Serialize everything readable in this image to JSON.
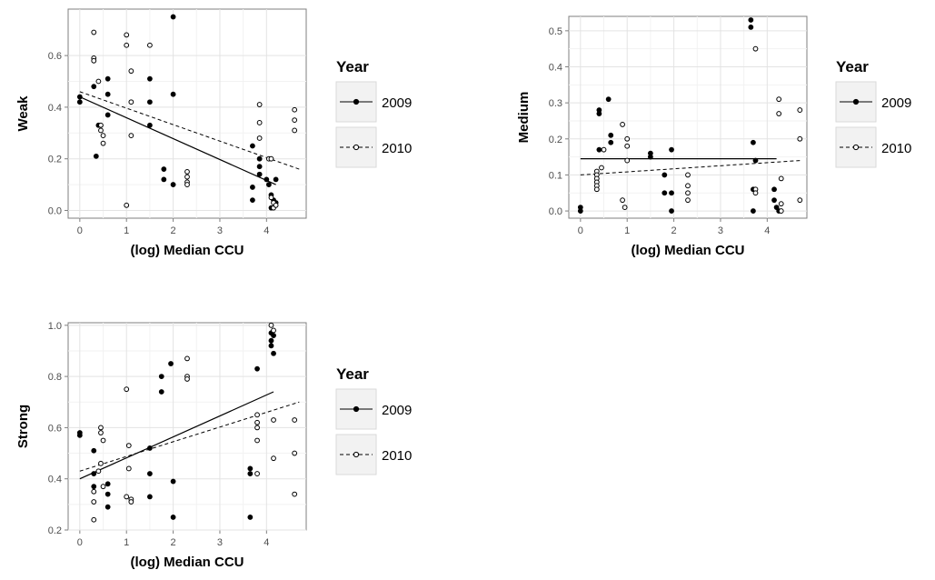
{
  "chart_data": [
    {
      "type": "scatter",
      "panel": "weak",
      "title": "",
      "xlabel": "(log) Median CCU",
      "ylabel": "Weak",
      "xlim": [
        -0.25,
        4.85
      ],
      "ylim": [
        -0.03,
        0.78
      ],
      "x_ticks": [
        0,
        1,
        2,
        3,
        4
      ],
      "y_ticks": [
        0.0,
        0.2,
        0.4,
        0.6
      ],
      "y_tick_labels": [
        "0.0",
        "0.2",
        "0.4",
        "0.6"
      ],
      "grid": true,
      "legend": {
        "title": "Year",
        "position": "right",
        "entries": [
          "2009",
          "2010"
        ]
      },
      "series": [
        {
          "name": "2009",
          "marker": "filled",
          "line": "solid",
          "points": [
            [
              0.0,
              0.44
            ],
            [
              0.0,
              0.42
            ],
            [
              0.3,
              0.48
            ],
            [
              0.35,
              0.21
            ],
            [
              0.4,
              0.33
            ],
            [
              0.6,
              0.51
            ],
            [
              0.6,
              0.45
            ],
            [
              0.6,
              0.37
            ],
            [
              1.5,
              0.51
            ],
            [
              1.5,
              0.42
            ],
            [
              1.5,
              0.33
            ],
            [
              1.8,
              0.16
            ],
            [
              1.8,
              0.12
            ],
            [
              2.0,
              0.75
            ],
            [
              2.0,
              0.45
            ],
            [
              2.0,
              0.1
            ],
            [
              3.7,
              0.25
            ],
            [
              3.7,
              0.09
            ],
            [
              3.7,
              0.04
            ],
            [
              3.85,
              0.2
            ],
            [
              3.85,
              0.17
            ],
            [
              3.85,
              0.14
            ],
            [
              4.0,
              0.12
            ],
            [
              4.05,
              0.1
            ],
            [
              4.1,
              0.06
            ],
            [
              4.15,
              0.04
            ],
            [
              4.2,
              0.12
            ],
            [
              4.2,
              0.03
            ],
            [
              4.1,
              0.01
            ]
          ],
          "trend": [
            [
              0.0,
              0.44
            ],
            [
              4.2,
              0.1
            ]
          ]
        },
        {
          "name": "2010",
          "marker": "open",
          "line": "dashed",
          "points": [
            [
              0.3,
              0.69
            ],
            [
              0.3,
              0.59
            ],
            [
              0.3,
              0.58
            ],
            [
              0.4,
              0.5
            ],
            [
              0.45,
              0.33
            ],
            [
              0.45,
              0.31
            ],
            [
              0.5,
              0.29
            ],
            [
              0.5,
              0.26
            ],
            [
              1.0,
              0.68
            ],
            [
              1.0,
              0.64
            ],
            [
              1.0,
              0.02
            ],
            [
              1.1,
              0.54
            ],
            [
              1.1,
              0.42
            ],
            [
              1.1,
              0.29
            ],
            [
              1.5,
              0.64
            ],
            [
              2.3,
              0.15
            ],
            [
              2.3,
              0.13
            ],
            [
              2.3,
              0.11
            ],
            [
              2.3,
              0.1
            ],
            [
              3.85,
              0.41
            ],
            [
              3.85,
              0.34
            ],
            [
              3.85,
              0.28
            ],
            [
              4.05,
              0.2
            ],
            [
              4.1,
              0.2
            ],
            [
              4.1,
              0.05
            ],
            [
              4.15,
              0.03
            ],
            [
              4.15,
              0.01
            ],
            [
              4.2,
              0.02
            ],
            [
              4.6,
              0.39
            ],
            [
              4.6,
              0.35
            ],
            [
              4.6,
              0.31
            ]
          ],
          "trend": [
            [
              0.0,
              0.46
            ],
            [
              4.7,
              0.16
            ]
          ]
        }
      ]
    },
    {
      "type": "scatter",
      "panel": "medium",
      "title": "",
      "xlabel": "(log) Median CCU",
      "ylabel": "Medium",
      "xlim": [
        -0.25,
        4.85
      ],
      "ylim": [
        -0.02,
        0.54
      ],
      "x_ticks": [
        0,
        1,
        2,
        3,
        4
      ],
      "y_ticks": [
        0.0,
        0.1,
        0.2,
        0.3,
        0.4,
        0.5
      ],
      "y_tick_labels": [
        "0.0",
        "0.1",
        "0.2",
        "0.3",
        "0.4",
        "0.5"
      ],
      "grid": true,
      "legend": {
        "title": "Year",
        "position": "right",
        "entries": [
          "2009",
          "2010"
        ]
      },
      "series": [
        {
          "name": "2009",
          "marker": "filled",
          "line": "solid",
          "points": [
            [
              0.0,
              0.01
            ],
            [
              0.0,
              0.0
            ],
            [
              0.4,
              0.28
            ],
            [
              0.4,
              0.27
            ],
            [
              0.4,
              0.17
            ],
            [
              0.6,
              0.31
            ],
            [
              0.65,
              0.21
            ],
            [
              0.65,
              0.19
            ],
            [
              1.5,
              0.16
            ],
            [
              1.5,
              0.15
            ],
            [
              1.8,
              0.1
            ],
            [
              1.8,
              0.05
            ],
            [
              1.95,
              0.17
            ],
            [
              1.95,
              0.05
            ],
            [
              1.95,
              0.0
            ],
            [
              3.65,
              0.53
            ],
            [
              3.65,
              0.51
            ],
            [
              3.7,
              0.19
            ],
            [
              3.75,
              0.14
            ],
            [
              3.7,
              0.06
            ],
            [
              3.7,
              0.0
            ],
            [
              4.15,
              0.06
            ],
            [
              4.15,
              0.03
            ],
            [
              4.2,
              0.01
            ],
            [
              4.25,
              0.0
            ]
          ],
          "trend": [
            [
              0.0,
              0.145
            ],
            [
              4.2,
              0.145
            ]
          ]
        },
        {
          "name": "2010",
          "marker": "open",
          "line": "dashed",
          "points": [
            [
              0.35,
              0.11
            ],
            [
              0.35,
              0.1
            ],
            [
              0.35,
              0.09
            ],
            [
              0.35,
              0.08
            ],
            [
              0.35,
              0.07
            ],
            [
              0.35,
              0.06
            ],
            [
              0.45,
              0.12
            ],
            [
              0.5,
              0.17
            ],
            [
              0.9,
              0.24
            ],
            [
              0.9,
              0.03
            ],
            [
              0.95,
              0.01
            ],
            [
              1.0,
              0.2
            ],
            [
              1.0,
              0.18
            ],
            [
              1.0,
              0.14
            ],
            [
              2.3,
              0.1
            ],
            [
              2.3,
              0.07
            ],
            [
              2.3,
              0.05
            ],
            [
              2.3,
              0.03
            ],
            [
              3.75,
              0.45
            ],
            [
              3.75,
              0.06
            ],
            [
              3.75,
              0.05
            ],
            [
              4.25,
              0.31
            ],
            [
              4.25,
              0.27
            ],
            [
              4.3,
              0.09
            ],
            [
              4.3,
              0.02
            ],
            [
              4.3,
              0.0
            ],
            [
              4.7,
              0.28
            ],
            [
              4.7,
              0.2
            ],
            [
              4.7,
              0.03
            ]
          ],
          "trend": [
            [
              0.0,
              0.1
            ],
            [
              4.7,
              0.14
            ]
          ]
        }
      ]
    },
    {
      "type": "scatter",
      "panel": "strong",
      "title": "",
      "xlabel": "(log) Median CCU",
      "ylabel": "Strong",
      "xlim": [
        -0.25,
        4.85
      ],
      "ylim": [
        0.2,
        1.01
      ],
      "x_ticks": [
        0,
        1,
        2,
        3,
        4
      ],
      "y_ticks": [
        0.2,
        0.4,
        0.6,
        0.8,
        1.0
      ],
      "y_tick_labels": [
        "0.2",
        "0.4",
        "0.6",
        "0.8",
        "1.0"
      ],
      "grid": true,
      "legend": {
        "title": "Year",
        "position": "right",
        "entries": [
          "2009",
          "2010"
        ]
      },
      "series": [
        {
          "name": "2009",
          "marker": "filled",
          "line": "solid",
          "points": [
            [
              0.0,
              0.58
            ],
            [
              0.0,
              0.57
            ],
            [
              0.3,
              0.51
            ],
            [
              0.3,
              0.42
            ],
            [
              0.3,
              0.37
            ],
            [
              0.6,
              0.38
            ],
            [
              0.6,
              0.34
            ],
            [
              0.6,
              0.29
            ],
            [
              1.5,
              0.52
            ],
            [
              1.5,
              0.42
            ],
            [
              1.5,
              0.33
            ],
            [
              1.75,
              0.8
            ],
            [
              1.75,
              0.74
            ],
            [
              1.95,
              0.85
            ],
            [
              2.0,
              0.39
            ],
            [
              2.0,
              0.25
            ],
            [
              3.65,
              0.44
            ],
            [
              3.65,
              0.42
            ],
            [
              3.65,
              0.25
            ],
            [
              3.8,
              0.83
            ],
            [
              4.1,
              0.97
            ],
            [
              4.1,
              0.94
            ],
            [
              4.1,
              0.92
            ],
            [
              4.15,
              0.89
            ],
            [
              4.15,
              0.96
            ]
          ],
          "trend": [
            [
              0.0,
              0.4
            ],
            [
              4.15,
              0.74
            ]
          ]
        },
        {
          "name": "2010",
          "marker": "open",
          "line": "dashed",
          "points": [
            [
              0.3,
              0.35
            ],
            [
              0.3,
              0.31
            ],
            [
              0.3,
              0.24
            ],
            [
              0.4,
              0.43
            ],
            [
              0.45,
              0.46
            ],
            [
              0.45,
              0.6
            ],
            [
              0.45,
              0.58
            ],
            [
              0.5,
              0.55
            ],
            [
              0.5,
              0.37
            ],
            [
              1.0,
              0.75
            ],
            [
              1.0,
              0.33
            ],
            [
              1.05,
              0.53
            ],
            [
              1.05,
              0.44
            ],
            [
              1.1,
              0.32
            ],
            [
              1.1,
              0.31
            ],
            [
              2.3,
              0.87
            ],
            [
              2.3,
              0.8
            ],
            [
              2.3,
              0.79
            ],
            [
              3.8,
              0.65
            ],
            [
              3.8,
              0.62
            ],
            [
              3.8,
              0.6
            ],
            [
              3.8,
              0.55
            ],
            [
              3.8,
              0.42
            ],
            [
              4.1,
              1.0
            ],
            [
              4.15,
              0.98
            ],
            [
              4.15,
              0.63
            ],
            [
              4.15,
              0.48
            ],
            [
              4.6,
              0.63
            ],
            [
              4.6,
              0.5
            ],
            [
              4.6,
              0.34
            ]
          ],
          "trend": [
            [
              0.0,
              0.43
            ],
            [
              4.7,
              0.7
            ]
          ]
        }
      ]
    }
  ]
}
